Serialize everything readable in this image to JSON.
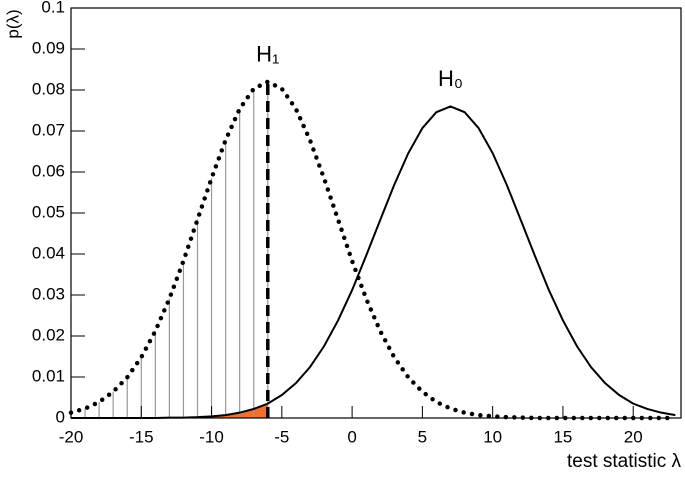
{
  "chart_data": {
    "type": "line",
    "xlabel": "test statistic λ",
    "ylabel": "p(λ)",
    "x": [
      -20,
      -19,
      -18,
      -17,
      -16,
      -15,
      -14,
      -13,
      -12,
      -11,
      -10,
      -9,
      -8,
      -7,
      -6,
      -5,
      -4,
      -3,
      -2,
      -1,
      0,
      1,
      2,
      3,
      4,
      5,
      6,
      7,
      8,
      9,
      10,
      11,
      12,
      13,
      14,
      15,
      16,
      17,
      18,
      19,
      20,
      21,
      22,
      23
    ],
    "series": [
      {
        "name": "H₁",
        "color": "#000000",
        "style": "dotted",
        "values": [
          0.0013,
          0.0023,
          0.0039,
          0.0064,
          0.0099,
          0.0148,
          0.0212,
          0.0291,
          0.0383,
          0.0484,
          0.0585,
          0.0678,
          0.0754,
          0.0803,
          0.082,
          0.0803,
          0.0754,
          0.0678,
          0.0585,
          0.0484,
          0.0383,
          0.0291,
          0.0212,
          0.0148,
          0.0099,
          0.0064,
          0.0039,
          0.0023,
          0.0013,
          0.0007,
          0.0004,
          0.0002,
          0.0001,
          0,
          0,
          0,
          0,
          0,
          0,
          0,
          0,
          0,
          0,
          0
        ]
      },
      {
        "name": "H₀",
        "color": "#000000",
        "style": "solid",
        "values": [
          0,
          0,
          0,
          0,
          0,
          0,
          0,
          0.0001,
          0.0001,
          0.0002,
          0.0004,
          0.0007,
          0.0013,
          0.0022,
          0.0035,
          0.0056,
          0.0085,
          0.0124,
          0.0175,
          0.0238,
          0.0312,
          0.0396,
          0.0483,
          0.0569,
          0.0646,
          0.0707,
          0.0746,
          0.076,
          0.0746,
          0.0707,
          0.0646,
          0.0569,
          0.0483,
          0.0396,
          0.0312,
          0.0238,
          0.0175,
          0.0124,
          0.0085,
          0.0056,
          0.0035,
          0.0022,
          0.0013,
          0.0007
        ]
      }
    ],
    "cut": -6,
    "fill_color": "#f07030",
    "hatch_color": "#999999",
    "xlim": [
      -20,
      23.4
    ],
    "ylim": [
      0,
      0.1
    ],
    "xticks": [
      -20,
      -15,
      -10,
      -5,
      0,
      5,
      10,
      15,
      20
    ],
    "yticks": [
      0,
      0.01,
      0.02,
      0.03,
      0.04,
      0.05,
      0.06,
      0.07,
      0.08,
      0.09,
      0.1
    ]
  }
}
